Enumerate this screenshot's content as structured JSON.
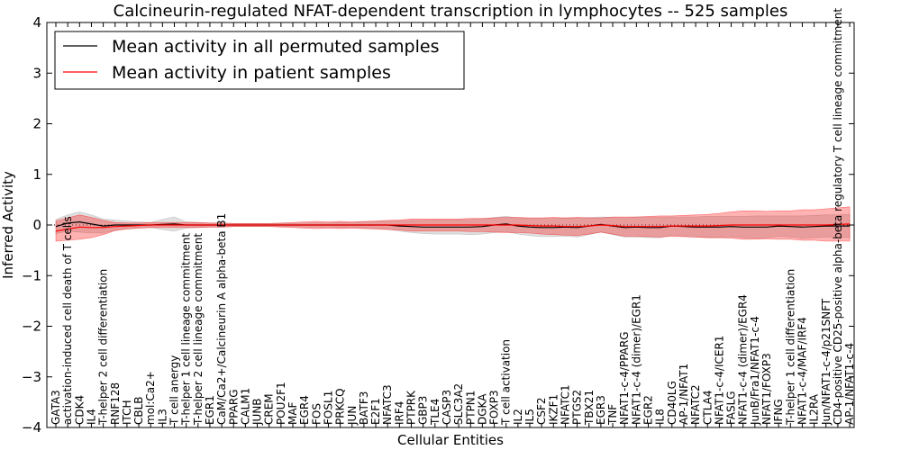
{
  "chart_data": {
    "type": "line",
    "title": "Calcineurin-regulated NFAT-dependent transcription in lymphocytes -- 525 samples",
    "xlabel": "Cellular Entities",
    "ylabel": "Inferred Activity",
    "ylim": [
      -4,
      4
    ],
    "yticks": [
      "4",
      "3",
      "2",
      "1",
      "0",
      "−1",
      "−2",
      "−3",
      "−4"
    ],
    "grid": false,
    "legend_position": "top-left",
    "categories": [
      "GATA3",
      "activation-induced cell death of T cells",
      "CDK4",
      "IL4",
      "T-helper 2 cell differentiation",
      "RNF128",
      "ITCH",
      "CBLB",
      "mol:Ca2+",
      "IL3",
      "T cell anergy",
      "T-helper 1 cell lineage commitment",
      "T-helper 2 cell lineage commitment",
      "EGR1",
      "CaM/Ca2+/Calcineurin A alpha-beta B1",
      "PPARG",
      "CALM1",
      "JUNB",
      "CREM",
      "POU2F1",
      "MAF",
      "EGR4",
      "FOS",
      "FOSL1",
      "PRKCQ",
      "JUN",
      "BATF3",
      "E2F1",
      "NFATC3",
      "IRF4",
      "PTPRK",
      "GBP3",
      "TLE4",
      "CASP3",
      "SLC3A2",
      "PTPN1",
      "DGKA",
      "FOXP3",
      "T cell activation",
      "IL2",
      "IL5",
      "CSF2",
      "IKZF1",
      "NFATC1",
      "PTGS2",
      "TBX21",
      "EGR3",
      "TNF",
      "NFAT1-c-4/PPARG",
      "NFAT1-c-4 (dimer)/EGR1",
      "EGR2",
      "IL8",
      "CD40LG",
      "AP-1/NFAT1",
      "NFATC2",
      "CTLA4",
      "NFAT1-c-4/ICER1",
      "FASLG",
      "NFAT1-c-4 (dimer)/EGR4",
      "JunB/Fra1/NFAT1-c-4",
      "NFAT1/FOXP3",
      "IFNG",
      "T-helper 1 cell differentiation",
      "NFAT1-c-4/MAF/IRF4",
      "IL2RA",
      "Jun/NFAT1-c-4/p21SNFT",
      "CD4-positive CD25-positive alpha-beta regulatory T cell lineage commitment",
      "AP-1/NFAT1-c-4"
    ],
    "series": [
      {
        "name": "Mean activity in all permuted samples",
        "color": "#000000",
        "values": [
          -0.03,
          0.04,
          0.06,
          0.02,
          -0.02,
          0.0,
          0.0,
          0.0,
          0.0,
          0.01,
          0.02,
          0.0,
          0.0,
          0.0,
          0.0,
          0.0,
          0.0,
          0.0,
          0.0,
          0.0,
          0.0,
          0.0,
          0.0,
          0.0,
          0.0,
          0.0,
          0.0,
          0.0,
          0.0,
          -0.02,
          -0.03,
          -0.04,
          -0.04,
          -0.04,
          -0.04,
          -0.04,
          -0.03,
          0.0,
          0.02,
          -0.02,
          -0.04,
          -0.05,
          -0.05,
          -0.04,
          -0.05,
          -0.02,
          0.01,
          -0.02,
          -0.05,
          -0.04,
          -0.05,
          -0.05,
          -0.02,
          -0.03,
          -0.04,
          -0.04,
          -0.04,
          -0.03,
          -0.04,
          -0.04,
          -0.04,
          -0.02,
          -0.03,
          -0.04,
          -0.03,
          -0.02,
          -0.02,
          -0.02
        ],
        "band": [
          0.14,
          0.16,
          0.2,
          0.18,
          0.14,
          0.1,
          0.08,
          0.06,
          0.05,
          0.1,
          0.14,
          0.06,
          0.05,
          0.04,
          0.04,
          0.03,
          0.03,
          0.03,
          0.03,
          0.03,
          0.03,
          0.04,
          0.04,
          0.04,
          0.05,
          0.05,
          0.06,
          0.07,
          0.08,
          0.1,
          0.12,
          0.13,
          0.14,
          0.14,
          0.14,
          0.15,
          0.15,
          0.15,
          0.15,
          0.16,
          0.17,
          0.18,
          0.18,
          0.18,
          0.19,
          0.17,
          0.15,
          0.17,
          0.19,
          0.2,
          0.2,
          0.2,
          0.18,
          0.19,
          0.2,
          0.21,
          0.21,
          0.2,
          0.21,
          0.22,
          0.22,
          0.2,
          0.21,
          0.22,
          0.22,
          0.22,
          0.22,
          0.23
        ]
      },
      {
        "name": "Mean activity in patient samples",
        "color": "#ff0000",
        "values": [
          -0.12,
          -0.08,
          -0.04,
          -0.05,
          -0.05,
          -0.03,
          -0.02,
          -0.01,
          0.0,
          0.0,
          0.0,
          0.0,
          0.0,
          0.0,
          0.0,
          0.0,
          0.0,
          0.0,
          0.0,
          0.0,
          0.0,
          0.0,
          0.0,
          0.0,
          0.0,
          0.0,
          0.0,
          0.0,
          0.0,
          0.0,
          0.0,
          0.0,
          0.0,
          0.0,
          0.0,
          0.0,
          0.0,
          0.0,
          0.0,
          0.0,
          -0.01,
          -0.02,
          -0.02,
          -0.03,
          -0.03,
          -0.02,
          0.0,
          -0.01,
          -0.03,
          -0.03,
          -0.03,
          -0.03,
          -0.02,
          -0.02,
          -0.02,
          -0.02,
          -0.01,
          0.0,
          0.0,
          0.0,
          0.0,
          0.0,
          0.0,
          0.0,
          0.0,
          0.0,
          0.01,
          0.02
        ],
        "band": [
          0.2,
          0.22,
          0.24,
          0.2,
          0.14,
          0.08,
          0.06,
          0.05,
          0.05,
          0.05,
          0.05,
          0.05,
          0.05,
          0.04,
          0.04,
          0.03,
          0.03,
          0.03,
          0.03,
          0.04,
          0.05,
          0.06,
          0.07,
          0.06,
          0.07,
          0.06,
          0.07,
          0.08,
          0.09,
          0.1,
          0.12,
          0.12,
          0.12,
          0.12,
          0.12,
          0.13,
          0.13,
          0.14,
          0.15,
          0.15,
          0.15,
          0.16,
          0.17,
          0.17,
          0.18,
          0.16,
          0.14,
          0.17,
          0.19,
          0.19,
          0.2,
          0.21,
          0.2,
          0.21,
          0.22,
          0.23,
          0.24,
          0.26,
          0.28,
          0.28,
          0.27,
          0.28,
          0.28,
          0.3,
          0.3,
          0.32,
          0.33,
          0.34
        ]
      }
    ]
  }
}
